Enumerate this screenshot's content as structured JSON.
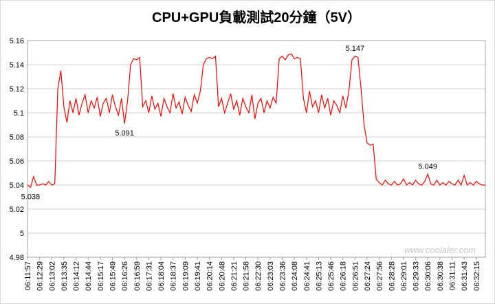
{
  "chart_data": {
    "type": "line",
    "title": "CPU+GPU負載測試20分鐘（5V）",
    "watermark": "www.coolaler.com",
    "categories": [
      "06:11:57",
      null,
      null,
      null,
      "06:12:29",
      null,
      null,
      null,
      "06:13:02",
      null,
      null,
      null,
      "06:13:35",
      null,
      null,
      null,
      "06:14:12",
      null,
      null,
      null,
      "06:14:44",
      null,
      null,
      null,
      "06:15:17",
      null,
      null,
      null,
      "06:15:49",
      null,
      null,
      null,
      "06:16:26",
      null,
      null,
      null,
      "06:16:59",
      null,
      null,
      null,
      "06:17:31",
      null,
      null,
      null,
      "06:18:04",
      null,
      null,
      null,
      "06:18:37",
      null,
      null,
      null,
      "06:19:09",
      null,
      null,
      null,
      "06:19:41",
      null,
      null,
      null,
      "06:20:14",
      null,
      null,
      null,
      "06:20:48",
      null,
      null,
      null,
      "06:21:21",
      null,
      null,
      null,
      "06:21:58",
      null,
      null,
      null,
      "06:22:30",
      null,
      null,
      null,
      "06:23:03",
      null,
      null,
      null,
      "06:23:36",
      null,
      null,
      null,
      "06:24:08",
      null,
      null,
      null,
      "06:24:41",
      null,
      null,
      null,
      "06:25:13",
      null,
      null,
      null,
      "06:25:46",
      null,
      null,
      null,
      "06:26:18",
      null,
      null,
      null,
      "06:26:51",
      null,
      null,
      null,
      "06:27:24",
      null,
      null,
      null,
      "06:27:56",
      null,
      null,
      null,
      "06:28:28",
      null,
      null,
      null,
      "06:29:01",
      null,
      null,
      null,
      "06:29:33",
      null,
      null,
      null,
      "06:30:06",
      null,
      null,
      null,
      "06:30:38",
      null,
      null,
      null,
      "06:31:11",
      null,
      null,
      null,
      "06:31:43",
      null,
      null,
      null,
      "06:32:15",
      null,
      null,
      null
    ],
    "values": [
      5.04,
      5.038,
      5.047,
      5.04,
      5.04,
      5.041,
      5.04,
      5.043,
      5.04,
      5.041,
      5.12,
      5.135,
      5.105,
      5.092,
      5.11,
      5.1,
      5.112,
      5.098,
      5.108,
      5.115,
      5.1,
      5.11,
      5.104,
      5.113,
      5.097,
      5.108,
      5.112,
      5.1,
      5.115,
      5.105,
      5.098,
      5.112,
      5.091,
      5.11,
      5.14,
      5.145,
      5.144,
      5.146,
      5.105,
      5.11,
      5.1,
      5.114,
      5.103,
      5.108,
      5.097,
      5.112,
      5.105,
      5.1,
      5.116,
      5.104,
      5.109,
      5.099,
      5.113,
      5.106,
      5.101,
      5.115,
      5.108,
      5.118,
      5.14,
      5.145,
      5.146,
      5.145,
      5.147,
      5.105,
      5.112,
      5.1,
      5.108,
      5.116,
      5.103,
      5.11,
      5.098,
      5.112,
      5.105,
      5.1,
      5.115,
      5.095,
      5.108,
      5.112,
      5.1,
      5.11,
      5.104,
      5.113,
      5.108,
      5.145,
      5.147,
      5.144,
      5.148,
      5.149,
      5.145,
      5.146,
      5.145,
      5.112,
      5.1,
      5.118,
      5.105,
      5.11,
      5.1,
      5.115,
      5.104,
      5.112,
      5.098,
      5.11,
      5.106,
      5.1,
      5.114,
      5.104,
      5.118,
      5.144,
      5.147,
      5.146,
      5.12,
      5.09,
      5.075,
      5.073,
      5.074,
      5.045,
      5.042,
      5.04,
      5.044,
      5.041,
      5.04,
      5.043,
      5.04,
      5.041,
      5.045,
      5.04,
      5.042,
      5.04,
      5.044,
      5.041,
      5.04,
      5.043,
      5.049,
      5.041,
      5.04,
      5.044,
      5.04,
      5.042,
      5.04,
      5.043,
      5.041,
      5.04,
      5.044,
      5.04,
      5.048,
      5.04,
      5.042,
      5.04,
      5.043,
      5.041,
      5.04,
      5.04
    ],
    "value_labels": [
      null,
      "5.038",
      null,
      null,
      null,
      null,
      null,
      null,
      null,
      null,
      null,
      null,
      null,
      null,
      null,
      null,
      null,
      null,
      null,
      null,
      null,
      null,
      null,
      null,
      null,
      null,
      null,
      null,
      null,
      null,
      null,
      null,
      "5.091",
      null,
      null,
      null,
      null,
      null,
      null,
      null,
      null,
      null,
      null,
      null,
      null,
      null,
      null,
      null,
      null,
      null,
      null,
      null,
      null,
      null,
      null,
      null,
      null,
      null,
      null,
      null,
      null,
      null,
      null,
      null,
      null,
      null,
      null,
      null,
      null,
      null,
      null,
      null,
      null,
      null,
      null,
      null,
      null,
      null,
      null,
      null,
      null,
      null,
      null,
      null,
      null,
      null,
      null,
      null,
      null,
      null,
      null,
      null,
      null,
      null,
      null,
      null,
      null,
      null,
      null,
      null,
      null,
      null,
      null,
      null,
      null,
      null,
      null,
      null,
      "5.147",
      null,
      null,
      null,
      null,
      null,
      null,
      null,
      null,
      null,
      null,
      null,
      null,
      null,
      null,
      null,
      null,
      null,
      null,
      null,
      null,
      null,
      null,
      null,
      "5.049",
      null,
      null,
      null,
      null,
      null,
      null,
      null,
      null,
      null,
      null,
      null,
      null,
      null,
      null,
      null,
      null,
      null,
      null,
      null
    ],
    "color": "#ff0000",
    "ylim": [
      4.98,
      5.16
    ],
    "yticks": [
      4.98,
      5,
      5.02,
      5.04,
      5.06,
      5.08,
      5.1,
      5.12,
      5.14,
      5.16
    ],
    "grid": true
  }
}
